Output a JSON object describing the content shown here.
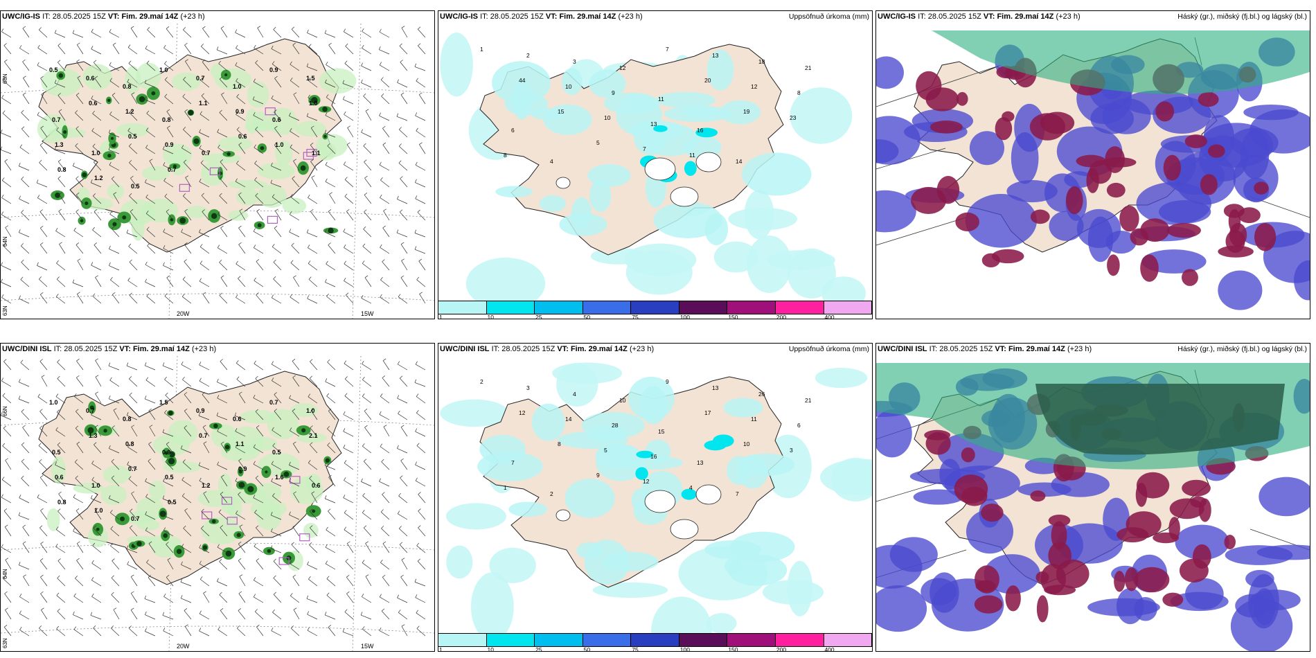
{
  "panels": [
    {
      "id": "p1",
      "model": "UWC/IG-IS",
      "it_label": "IT:",
      "it_value": "28.05.2025 15Z",
      "vt_label": "VT:",
      "vt_value": "Fim. 29.maí 14Z",
      "lead": "(+23 h)",
      "right_title": "",
      "lon_labels": [
        "20W",
        "15W"
      ],
      "lat_labels": [
        "66N",
        "64N",
        "63N"
      ],
      "values": [
        "0.5",
        "0.6",
        "0.8",
        "1.0",
        "0.7",
        "1.0",
        "0.9",
        "1.5",
        "0.7",
        "0.6",
        "1.2",
        "0.8",
        "1.1",
        "0.9",
        "0.6",
        "1.0",
        "1.3",
        "1.0",
        "0.5",
        "0.9",
        "0.7",
        "0.6",
        "1.0",
        "1.1",
        "0.8",
        "1.2",
        "0.5",
        "0.7"
      ]
    },
    {
      "id": "p2",
      "model": "UWC/IG-IS",
      "it_label": "IT:",
      "it_value": "28.05.2025 15Z",
      "vt_label": "VT:",
      "vt_value": "Fim. 29.maí 14Z",
      "lead": "(+23 h)",
      "right_title": "Uppsöfnuð úrkoma (mm)",
      "colorbar": [
        "1",
        "10",
        "25",
        "50",
        "75",
        "100",
        "150",
        "200",
        "400"
      ],
      "colorbar_colors": [
        "#b8f5f5",
        "#00e5ee",
        "#00bfee",
        "#3a6ee8",
        "#2a3fc0",
        "#5a0e5a",
        "#a0107a",
        "#ff20a0",
        "#f0a8f0"
      ],
      "values": [
        "1",
        "2",
        "3",
        "12",
        "7",
        "13",
        "18",
        "21",
        "44",
        "10",
        "9",
        "11",
        "20",
        "12",
        "8",
        "6",
        "15",
        "10",
        "13",
        "16",
        "19",
        "23",
        "8",
        "4",
        "5",
        "7",
        "11",
        "14"
      ]
    },
    {
      "id": "p3",
      "model": "UWC/IG-IS",
      "it_label": "IT:",
      "it_value": "28.05.2025 15Z",
      "vt_label": "VT:",
      "vt_value": "Fim. 29.maí 14Z",
      "lead": "(+23 h)",
      "right_title": "Háský (gr.), miðský (fj.bl.) og lágský (bl.)"
    },
    {
      "id": "p4",
      "model": "UWC/DINI ISL",
      "it_label": "IT:",
      "it_value": "28.05.2025 15Z",
      "vt_label": "VT:",
      "vt_value": "Fim. 29.maí 14Z",
      "lead": "(+23 h)",
      "right_title": "",
      "lon_labels": [
        "20W",
        "15W"
      ],
      "lat_labels": [
        "66N",
        "64N",
        "63N"
      ],
      "values": [
        "1.0",
        "0.7",
        "0.8",
        "1.5",
        "0.9",
        "0.6",
        "0.7",
        "1.0",
        "0.5",
        "1.3",
        "0.8",
        "0.9",
        "0.7",
        "1.1",
        "0.5",
        "2.1",
        "0.6",
        "1.0",
        "0.7",
        "0.5",
        "1.2",
        "0.9",
        "1.6",
        "0.6",
        "0.8",
        "1.0",
        "0.7",
        "0.5"
      ]
    },
    {
      "id": "p5",
      "model": "UWC/DINI ISL",
      "it_label": "IT:",
      "it_value": "28.05.2025 15Z",
      "vt_label": "VT:",
      "vt_value": "Fim. 29.maí 14Z",
      "lead": "(+23 h)",
      "right_title": "Uppsöfnuð úrkoma (mm)",
      "colorbar": [
        "1",
        "10",
        "25",
        "50",
        "75",
        "100",
        "150",
        "200",
        "400"
      ],
      "colorbar_colors": [
        "#b8f5f5",
        "#00e5ee",
        "#00bfee",
        "#3a6ee8",
        "#2a3fc0",
        "#5a0e5a",
        "#a0107a",
        "#ff20a0",
        "#f0a8f0"
      ],
      "values": [
        "2",
        "3",
        "4",
        "10",
        "9",
        "13",
        "26",
        "21",
        "12",
        "14",
        "28",
        "15",
        "17",
        "11",
        "6",
        "7",
        "8",
        "5",
        "16",
        "13",
        "10",
        "3",
        "1",
        "2",
        "9",
        "12",
        "4",
        "7"
      ]
    },
    {
      "id": "p6",
      "model": "UWC/DINI ISL",
      "it_label": "IT:",
      "it_value": "28.05.2025 15Z",
      "vt_label": "VT:",
      "vt_value": "Fim. 29.maí 14Z",
      "lead": "(+23 h)",
      "right_title": "Háský (gr.), miðský (fj.bl.) og lágský (bl.)"
    }
  ],
  "colors": {
    "land": "#f3e3d4",
    "coast": "#222222",
    "precip_light": "#c8f0c0",
    "precip_mid": "#3a9a3a",
    "precip_dark": "#0d3a12",
    "cloud_high": "#2fb080",
    "cloud_mid": "#4a4ad0",
    "cloud_low": "#8a1a4a",
    "snow_hatch": "#b060c0"
  }
}
